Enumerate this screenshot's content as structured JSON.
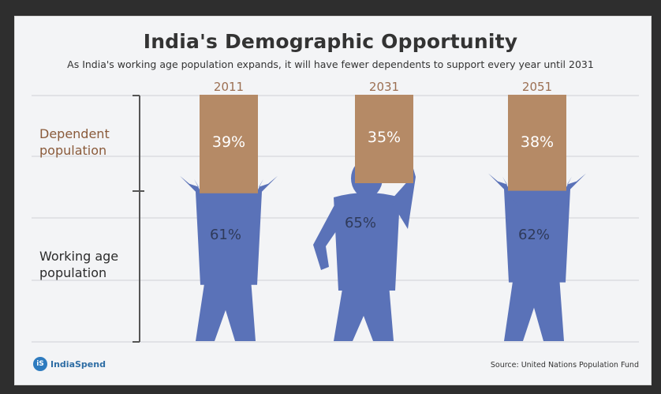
{
  "chart_data": {
    "type": "bar",
    "title": "India's Demographic Opportunity",
    "subtitle": "As India's working age population expands, it will have fewer dependents to support every year until 2031",
    "categories": [
      "2011",
      "2031",
      "2051"
    ],
    "series": [
      {
        "name": "Dependent population",
        "values": [
          39,
          35,
          38
        ]
      },
      {
        "name": "Working age population",
        "values": [
          61,
          65,
          62
        ]
      }
    ],
    "value_labels": {
      "dependent": [
        "39%",
        "35%",
        "38%"
      ],
      "working": [
        "61%",
        "65%",
        "62%"
      ]
    },
    "category_labels": {
      "dependent": [
        "Dependent",
        "population"
      ],
      "working": [
        "Working age",
        "population"
      ]
    },
    "grid": true,
    "colors": {
      "box": "#b58a66",
      "figure": "#5a72b8",
      "figure_text": "#2f3a5a",
      "year": "#9c6f52",
      "dependent_label": "#8a5a3a",
      "working_label": "#2b2b2b",
      "grid": "#cfcfd6"
    }
  },
  "footer": {
    "brand_icon_text": "iS",
    "brand": "IndiaSpend",
    "source": "Source: United Nations Population Fund"
  }
}
